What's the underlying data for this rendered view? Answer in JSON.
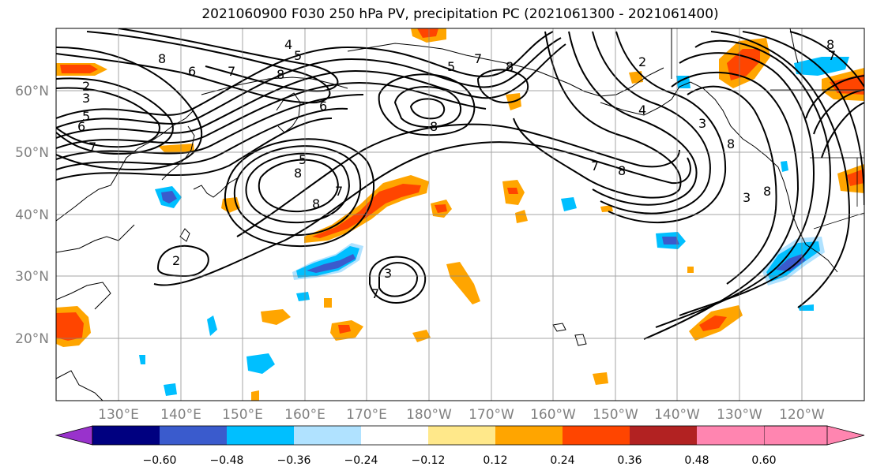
{
  "title": "2021060900 F030 250 hPa PV, precipitation PC (2021061300 - 2021061400)",
  "lat_ticks": [
    "60°N",
    "50°N",
    "40°N",
    "30°N",
    "20°N"
  ],
  "lon_ticks": [
    "130°E",
    "140°E",
    "150°E",
    "160°E",
    "170°E",
    "180°W",
    "170°W",
    "160°W",
    "150°W",
    "140°W",
    "130°W",
    "120°W"
  ],
  "colorbar": {
    "ticks": [
      "−0.60",
      "−0.48",
      "−0.36",
      "−0.24",
      "−0.12",
      "0.12",
      "0.24",
      "0.36",
      "0.48",
      "0.60"
    ],
    "colors": [
      "#9932cc",
      "#000080",
      "#3a5bcd",
      "#00bfff",
      "#b0e2ff",
      "#ffffff",
      "#ffe88a",
      "#ffa500",
      "#ff4500",
      "#b22222",
      "#ff85b0"
    ]
  },
  "contour_labels": [
    "8",
    "6",
    "7",
    "5",
    "4",
    "8",
    "2",
    "3",
    "5",
    "6",
    "7",
    "5",
    "8",
    "7",
    "8",
    "6",
    "8",
    "7",
    "2",
    "8",
    "3",
    "5",
    "8",
    "4",
    "3",
    "2",
    "7",
    "8",
    "8",
    "7",
    "8",
    "3",
    "7"
  ]
}
